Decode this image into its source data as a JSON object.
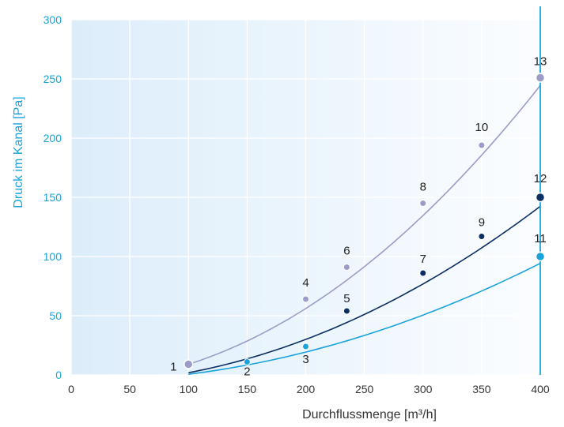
{
  "chart_data": {
    "type": "line",
    "xlabel": "Durchflussmenge [m³/h]",
    "ylabel": "Druck im Kanal [Pa]",
    "xlim": [
      0,
      400
    ],
    "ylim": [
      0,
      300
    ],
    "x_ticks": [
      "0",
      "50",
      "100",
      "150",
      "200",
      "250",
      "300",
      "350",
      "400"
    ],
    "y_ticks": [
      "0",
      "50",
      "100",
      "150",
      "200",
      "250",
      "300"
    ],
    "grid": true,
    "colors": {
      "axis_accent": "#1aa3db",
      "grid": "#ffffff",
      "background": "#dff0fb"
    },
    "vertical_marker_x": 400,
    "series": [
      {
        "color": "#9b9dc8",
        "curve_x": [
          100,
          400
        ],
        "curve_k": 0.00157,
        "points": [
          {
            "label": "1",
            "x": 100,
            "y": 9
          },
          {
            "label": "4",
            "x": 200,
            "y": 64
          },
          {
            "label": "6",
            "x": 235,
            "y": 91
          },
          {
            "label": "8",
            "x": 300,
            "y": 145
          },
          {
            "label": "10",
            "x": 350,
            "y": 194
          },
          {
            "label": "13",
            "x": 400,
            "y": 251
          }
        ]
      },
      {
        "color": "#0b2f63",
        "curve_x": [
          100,
          400
        ],
        "curve_k": 0.000937,
        "points": [
          {
            "label": "5",
            "x": 235,
            "y": 54
          },
          {
            "label": "7",
            "x": 300,
            "y": 86
          },
          {
            "label": "9",
            "x": 350,
            "y": 117
          },
          {
            "label": "12",
            "x": 400,
            "y": 150
          }
        ]
      },
      {
        "color": "#1aa3db",
        "curve_x": [
          100,
          400
        ],
        "curve_k": 0.000625,
        "points": [
          {
            "label": "2",
            "x": 150,
            "y": 11
          },
          {
            "label": "3",
            "x": 200,
            "y": 24
          },
          {
            "label": "11",
            "x": 400,
            "y": 100
          }
        ]
      }
    ]
  }
}
